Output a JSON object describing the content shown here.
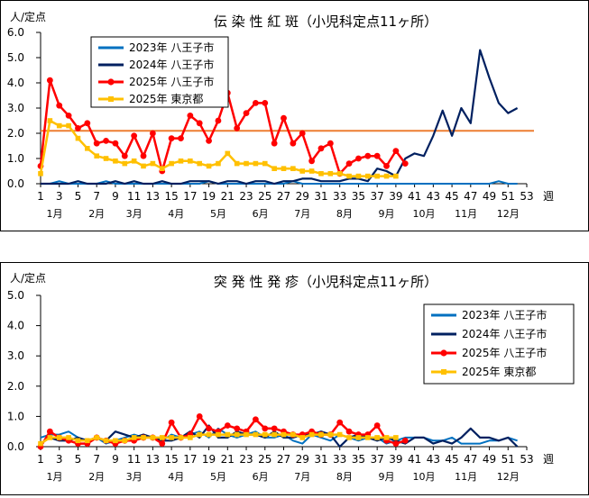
{
  "chart_data": [
    {
      "type": "line",
      "title": "伝 染 性 紅 斑（小児科定点11ヶ所）",
      "ylabel": "人/定点",
      "xlabel_suffix": "週",
      "ylim": [
        0.0,
        6.0
      ],
      "yticks": [
        "0.0",
        "1.0",
        "2.0",
        "3.0",
        "4.0",
        "5.0",
        "6.0"
      ],
      "xticks": [
        "1",
        "3",
        "5",
        "7",
        "9",
        "11",
        "13",
        "15",
        "17",
        "19",
        "21",
        "23",
        "25",
        "27",
        "29",
        "31",
        "33",
        "35",
        "37",
        "39",
        "41",
        "43",
        "45",
        "47",
        "49",
        "51",
        "53"
      ],
      "months": [
        {
          "label": "1月",
          "week": 2.5
        },
        {
          "label": "2月",
          "week": 7
        },
        {
          "label": "3月",
          "week": 11
        },
        {
          "label": "4月",
          "week": 15.5
        },
        {
          "label": "5月",
          "week": 20
        },
        {
          "label": "6月",
          "week": 24.5
        },
        {
          "label": "7月",
          "week": 29
        },
        {
          "label": "8月",
          "week": 33.5
        },
        {
          "label": "9月",
          "week": 38
        },
        {
          "label": "10月",
          "week": 42
        },
        {
          "label": "11月",
          "week": 46.5
        },
        {
          "label": "12月",
          "week": 51
        }
      ],
      "reference_line": {
        "value": 2.1,
        "color": "#ed7d31"
      },
      "legend": {
        "position": "top-left"
      },
      "series": [
        {
          "name": "2023年 八王子市",
          "color": "#0070c0",
          "marker": "none",
          "values": [
            0.0,
            0.0,
            0.1,
            0.0,
            0.0,
            0.0,
            0.0,
            0.1,
            0.0,
            0.0,
            0.0,
            0.0,
            0.0,
            0.0,
            0.0,
            0.0,
            0.0,
            0.0,
            0.1,
            0.0,
            0.0,
            0.0,
            0.0,
            0.0,
            0.0,
            0.0,
            0.0,
            0.1,
            0.0,
            0.0,
            0.0,
            0.0,
            0.0,
            0.0,
            0.0,
            0.0,
            0.0,
            0.0,
            0.0,
            0.0,
            0.0,
            0.0,
            0.0,
            0.0,
            0.0,
            0.0,
            0.0,
            0.0,
            0.0,
            0.1,
            0.0,
            0.0
          ]
        },
        {
          "name": "2024年 八王子市",
          "color": "#002060",
          "marker": "none",
          "values": [
            0.0,
            0.0,
            0.0,
            0.0,
            0.1,
            0.0,
            0.0,
            0.0,
            0.1,
            0.0,
            0.1,
            0.0,
            0.0,
            0.1,
            0.0,
            0.0,
            0.1,
            0.1,
            0.1,
            0.0,
            0.1,
            0.1,
            0.0,
            0.1,
            0.1,
            0.0,
            0.1,
            0.1,
            0.2,
            0.2,
            0.1,
            0.1,
            0.1,
            0.2,
            0.2,
            0.1,
            0.6,
            0.5,
            0.3,
            1.0,
            1.2,
            1.1,
            1.9,
            2.9,
            1.9,
            3.0,
            2.4,
            5.3,
            4.2,
            3.2,
            2.8,
            3.0
          ]
        },
        {
          "name": "2025年 八王子市",
          "color": "#ff0000",
          "marker": "circle",
          "values": [
            0.7,
            4.1,
            3.1,
            2.7,
            2.2,
            2.4,
            1.6,
            1.7,
            1.6,
            1.1,
            1.9,
            1.1,
            2.0,
            0.5,
            1.8,
            1.8,
            2.7,
            2.4,
            1.7,
            2.5,
            3.6,
            2.2,
            2.8,
            3.2,
            3.2,
            1.6,
            2.6,
            1.6,
            2.0,
            0.9,
            1.4,
            1.6,
            0.4,
            0.8,
            1.0,
            1.1,
            1.1,
            0.7,
            1.3,
            0.8
          ]
        },
        {
          "name": "2025年 東京都",
          "color": "#ffc000",
          "marker": "square",
          "values": [
            0.4,
            2.5,
            2.3,
            2.3,
            1.8,
            1.4,
            1.1,
            1.0,
            0.9,
            0.8,
            0.9,
            0.7,
            0.8,
            0.6,
            0.8,
            0.9,
            0.9,
            0.8,
            0.7,
            0.8,
            1.2,
            0.8,
            0.8,
            0.8,
            0.8,
            0.6,
            0.6,
            0.6,
            0.5,
            0.5,
            0.4,
            0.4,
            0.4,
            0.3,
            0.3,
            0.3,
            0.3,
            0.3,
            0.3
          ]
        }
      ]
    },
    {
      "type": "line",
      "title": "突 発 性 発 疹（小児科定点11ヶ所）",
      "ylabel": "人/定点",
      "xlabel_suffix": "週",
      "ylim": [
        0.0,
        5.0
      ],
      "yticks": [
        "0.0",
        "1.0",
        "2.0",
        "3.0",
        "4.0",
        "5.0"
      ],
      "xticks": [
        "1",
        "3",
        "5",
        "7",
        "9",
        "11",
        "13",
        "15",
        "17",
        "19",
        "21",
        "23",
        "25",
        "27",
        "29",
        "31",
        "33",
        "35",
        "37",
        "39",
        "41",
        "43",
        "45",
        "47",
        "49",
        "51",
        "53"
      ],
      "months": [
        {
          "label": "1月",
          "week": 2.5
        },
        {
          "label": "2月",
          "week": 7
        },
        {
          "label": "3月",
          "week": 11
        },
        {
          "label": "4月",
          "week": 15.5
        },
        {
          "label": "5月",
          "week": 20
        },
        {
          "label": "6月",
          "week": 24.5
        },
        {
          "label": "7月",
          "week": 29
        },
        {
          "label": "8月",
          "week": 33.5
        },
        {
          "label": "9月",
          "week": 38
        },
        {
          "label": "10月",
          "week": 42
        },
        {
          "label": "11月",
          "week": 46.5
        },
        {
          "label": "12月",
          "week": 51
        }
      ],
      "legend": {
        "position": "top-right"
      },
      "series": [
        {
          "name": "2023年 八王子市",
          "color": "#0070c0",
          "marker": "none",
          "values": [
            0.3,
            0.4,
            0.4,
            0.5,
            0.3,
            0.2,
            0.3,
            0.1,
            0.2,
            0.3,
            0.4,
            0.3,
            0.3,
            0.2,
            0.4,
            0.3,
            0.4,
            0.5,
            0.3,
            0.6,
            0.4,
            0.3,
            0.4,
            0.5,
            0.3,
            0.3,
            0.4,
            0.2,
            0.1,
            0.4,
            0.3,
            0.2,
            0.4,
            0.3,
            0.2,
            0.3,
            0.3,
            0.1,
            0.2,
            0.3,
            0.3,
            0.3,
            0.2,
            0.2,
            0.3,
            0.1,
            0.1,
            0.1,
            0.2,
            0.2,
            0.3,
            0.2
          ]
        },
        {
          "name": "2024年 八王子市",
          "color": "#002060",
          "marker": "none",
          "values": [
            0.1,
            0.3,
            0.2,
            0.2,
            0.3,
            0.2,
            0.3,
            0.2,
            0.5,
            0.4,
            0.3,
            0.4,
            0.3,
            0.2,
            0.2,
            0.3,
            0.5,
            0.3,
            0.7,
            0.3,
            0.3,
            0.5,
            0.4,
            0.4,
            0.3,
            0.5,
            0.3,
            0.3,
            0.4,
            0.4,
            0.5,
            0.4,
            0.0,
            0.3,
            0.4,
            0.3,
            0.2,
            0.3,
            0.2,
            0.1,
            0.3,
            0.3,
            0.1,
            0.2,
            0.1,
            0.3,
            0.6,
            0.3,
            0.3,
            0.2,
            0.3,
            0.0
          ]
        },
        {
          "name": "2025年 八王子市",
          "color": "#ff0000",
          "marker": "circle",
          "values": [
            0.0,
            0.5,
            0.3,
            0.2,
            0.1,
            0.1,
            0.3,
            0.2,
            0.1,
            0.2,
            0.2,
            0.3,
            0.3,
            0.1,
            0.8,
            0.3,
            0.4,
            1.0,
            0.6,
            0.5,
            0.7,
            0.6,
            0.5,
            0.9,
            0.6,
            0.6,
            0.5,
            0.4,
            0.4,
            0.5,
            0.4,
            0.4,
            0.8,
            0.5,
            0.4,
            0.4,
            0.7,
            0.2,
            0.1,
            0.2
          ]
        },
        {
          "name": "2025年 東京都",
          "color": "#ffc000",
          "marker": "square",
          "values": [
            0.1,
            0.3,
            0.3,
            0.3,
            0.2,
            0.2,
            0.3,
            0.2,
            0.2,
            0.2,
            0.3,
            0.3,
            0.3,
            0.3,
            0.3,
            0.3,
            0.3,
            0.4,
            0.4,
            0.4,
            0.4,
            0.4,
            0.4,
            0.4,
            0.4,
            0.4,
            0.4,
            0.4,
            0.3,
            0.4,
            0.4,
            0.4,
            0.4,
            0.3,
            0.3,
            0.3,
            0.3,
            0.3,
            0.3
          ]
        }
      ]
    }
  ]
}
